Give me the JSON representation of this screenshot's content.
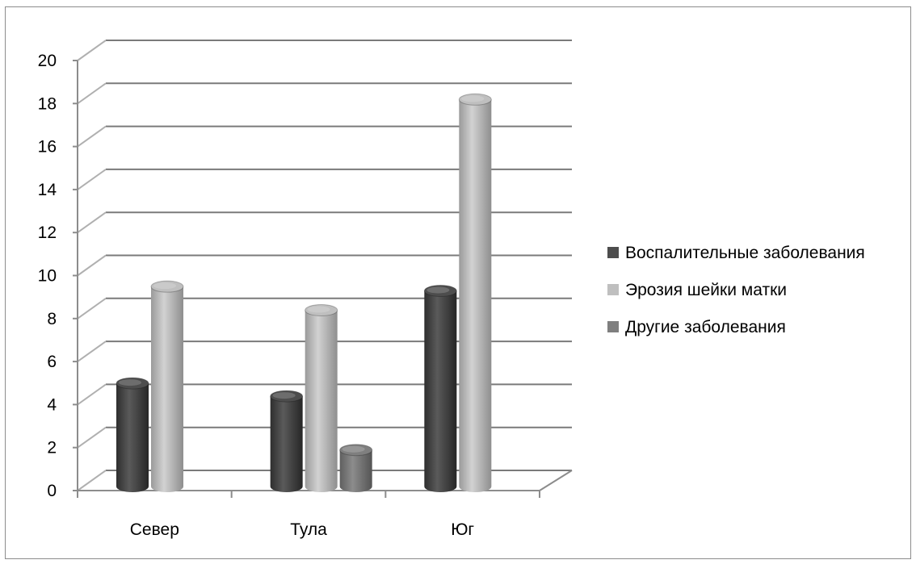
{
  "chart_data": {
    "type": "bar",
    "style": "3d-cylinder",
    "categories": [
      "Север",
      "Тула",
      "Юг"
    ],
    "series": [
      {
        "name": "Воспалительные заболевания",
        "color": "#4d4d4d",
        "values": [
          4.8,
          4.2,
          9.1
        ]
      },
      {
        "name": "Эрозия шейки матки",
        "color": "#bfbfbf",
        "values": [
          9.3,
          8.2,
          18.0
        ]
      },
      {
        "name": "Другие заболевания",
        "color": "#7f7f7f",
        "values": [
          0,
          1.7,
          0
        ]
      }
    ],
    "yticks": [
      "0",
      "2",
      "4",
      "6",
      "8",
      "10",
      "12",
      "14",
      "16",
      "18",
      "20"
    ],
    "ylim": [
      0,
      20
    ],
    "grid": true,
    "legend_position": "right"
  }
}
